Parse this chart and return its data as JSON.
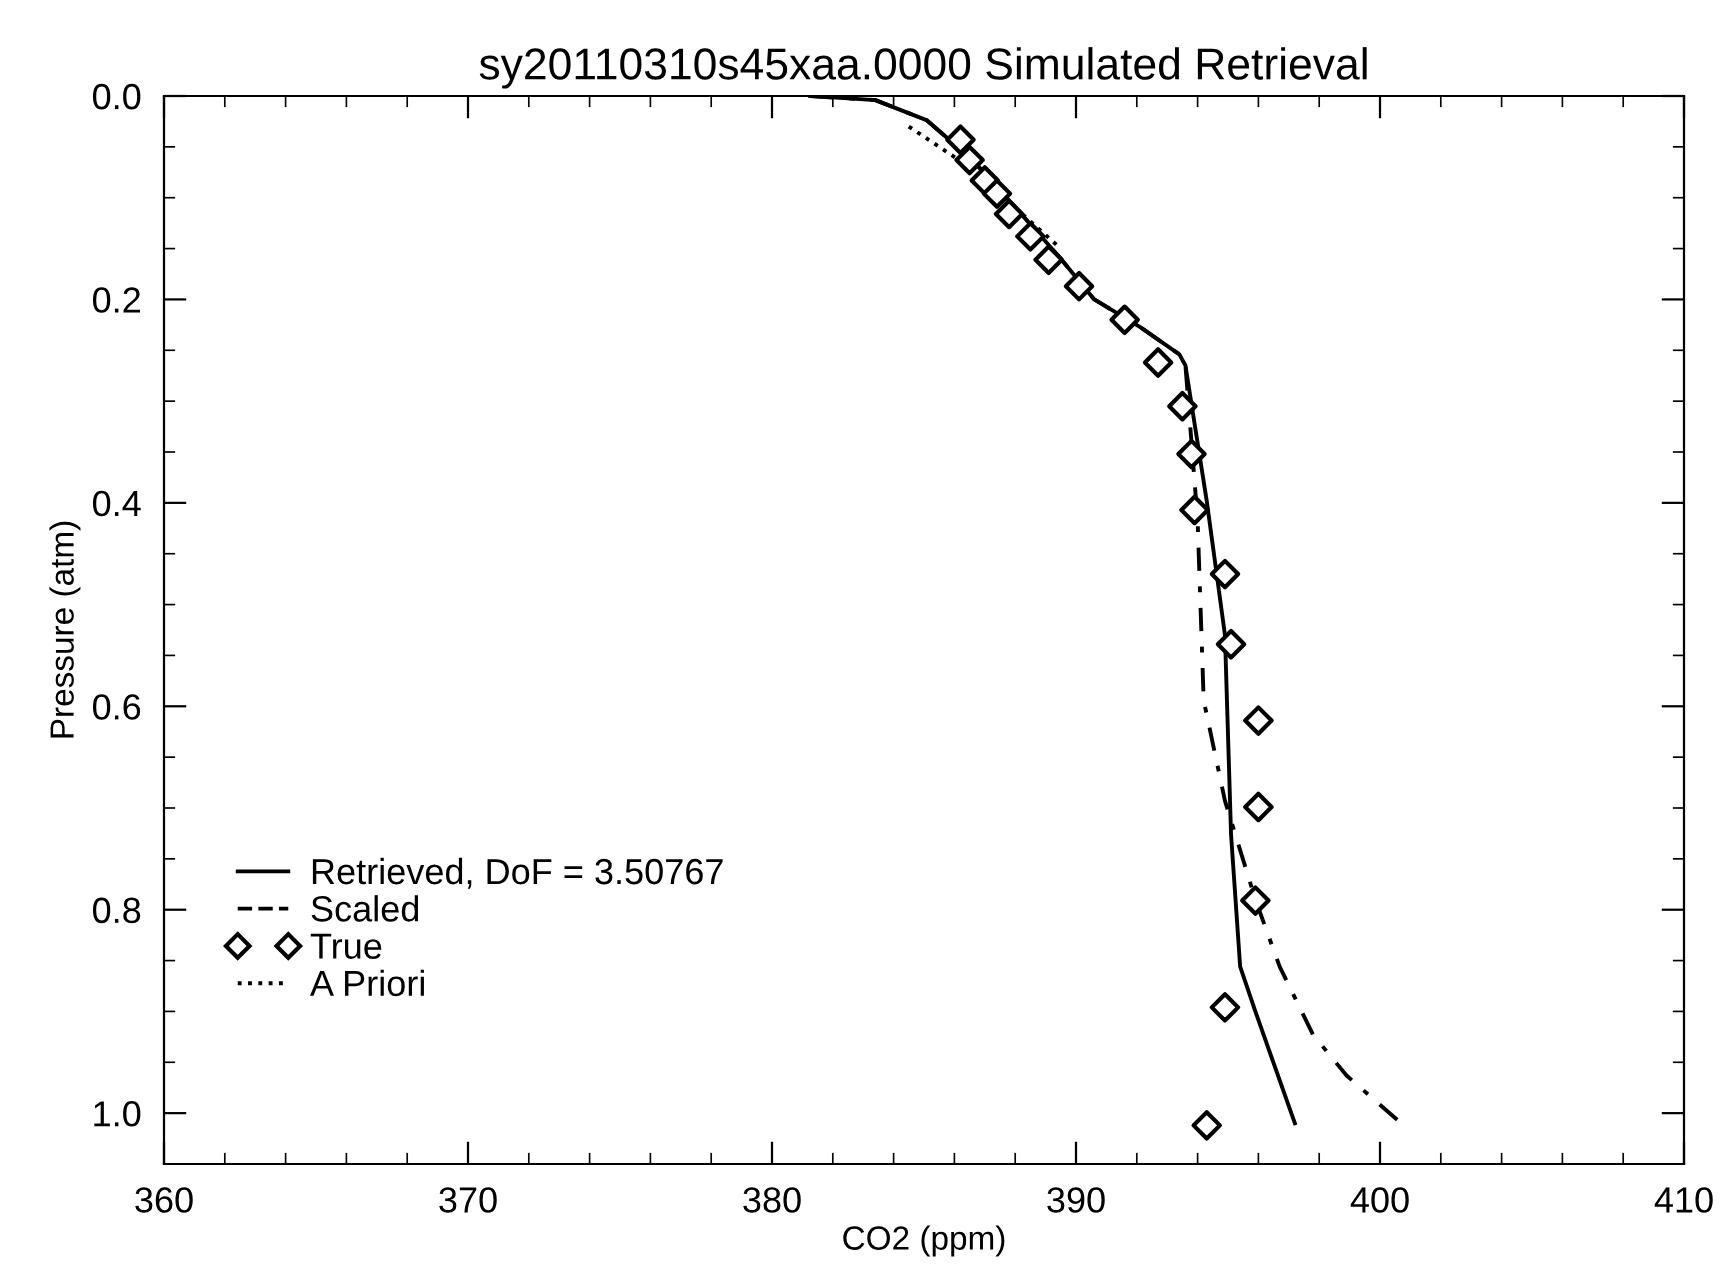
{
  "chart_data": {
    "type": "line",
    "title": "sy20110310s45xaa.0000 Simulated Retrieval",
    "xlabel": "CO2 (ppm)",
    "ylabel": "Pressure (atm)",
    "xlim": [
      360,
      410
    ],
    "xticks": [
      360,
      370,
      380,
      390,
      400,
      410
    ],
    "ylim": [
      1.05,
      0
    ],
    "yticks": [
      {
        "value": 0,
        "label": "0.0"
      },
      0.2,
      0.4,
      0.6,
      0.8,
      {
        "value": 1,
        "label": "1.0"
      }
    ],
    "grid": false,
    "legend": "bottom left",
    "series": [
      {
        "name": "Retrieved, DoF = 3.50767",
        "line_style": "solid",
        "color": "#000000",
        "x": [
          381.25,
          383.4,
          385.1,
          386.6,
          388.2,
          389.5,
          390.6,
          392.1,
          393.4,
          393.6,
          394.3,
          394.9,
          395.1,
          395.4,
          395.9,
          397.2
        ],
        "values": [
          0,
          0.004,
          0.024,
          0.063,
          0.116,
          0.16,
          0.2,
          0.227,
          0.254,
          0.265,
          0.398,
          0.53,
          0.726,
          0.856,
          0.9,
          1.01
        ]
      },
      {
        "name": "Scaled",
        "line_style": "dashed",
        "color": "#000000",
        "x": [
          381.25,
          383.4,
          385.1,
          386.6,
          388.2,
          389.5,
          390.6,
          392.1,
          393.4,
          393.6,
          394.0,
          394.2,
          394.9,
          395.9,
          396.7,
          397.8,
          398.9,
          400.7
        ],
        "values": [
          0,
          0.004,
          0.024,
          0.063,
          0.116,
          0.16,
          0.2,
          0.227,
          0.254,
          0.265,
          0.417,
          0.594,
          0.693,
          0.79,
          0.856,
          0.923,
          0.963,
          1.01
        ]
      },
      {
        "name": "True",
        "type": "scatter",
        "marker": "diamond",
        "color": "#000000",
        "x": [
          386.2,
          386.5,
          387.0,
          387.4,
          387.8,
          388.5,
          389.1,
          390.1,
          391.6,
          392.7,
          393.5,
          393.8,
          393.9,
          394.9,
          395.1,
          396.0,
          396.0,
          395.9,
          394.9,
          394.3
        ],
        "values": [
          0.043,
          0.063,
          0.083,
          0.096,
          0.116,
          0.138,
          0.161,
          0.187,
          0.22,
          0.262,
          0.305,
          0.352,
          0.407,
          0.47,
          0.539,
          0.614,
          0.699,
          0.791,
          0.896,
          1.012
        ]
      },
      {
        "name": "A Priori",
        "line_style": "dotted",
        "color": "#000000",
        "x": [
          384.5,
          386.5,
          388.0,
          389.5
        ],
        "values": [
          0.03,
          0.07,
          0.11,
          0.15
        ]
      }
    ]
  }
}
